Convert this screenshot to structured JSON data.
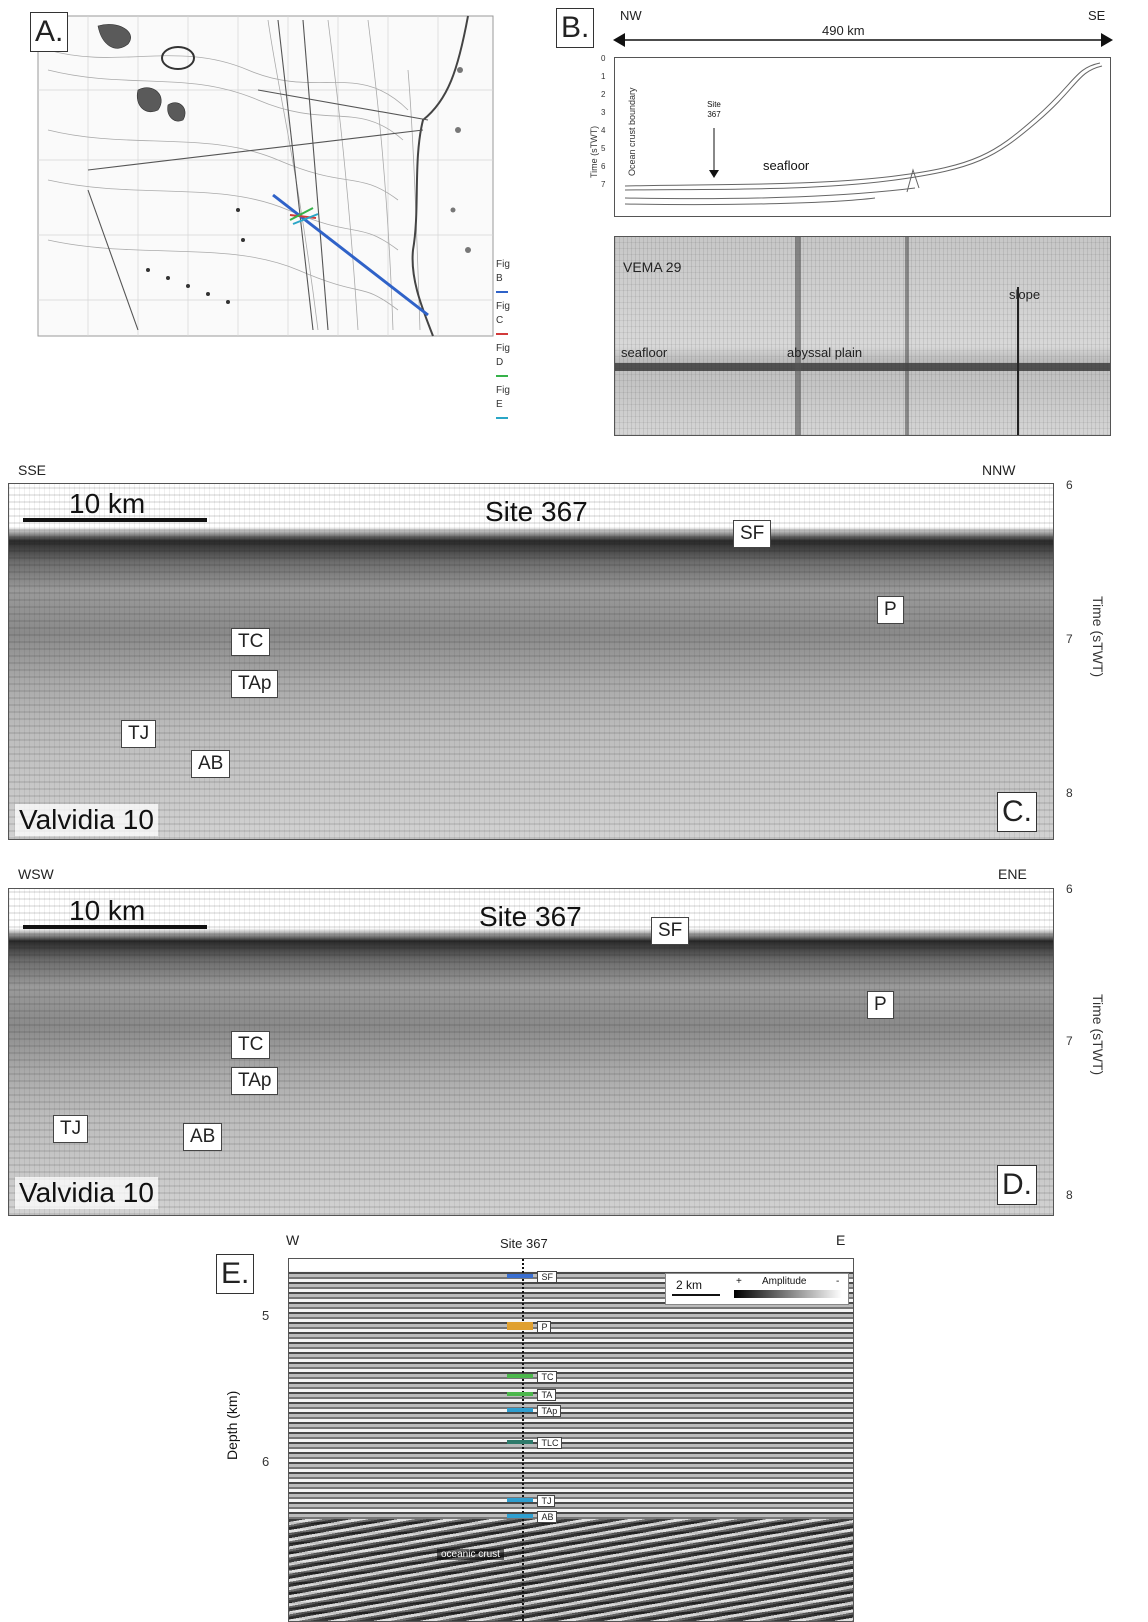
{
  "panel_a": {
    "letter": "A.",
    "legend": [
      "Fig B",
      "Fig C",
      "Fig D",
      "Fig E"
    ],
    "legend_colors": [
      "#2f62c8",
      "#d23a3a",
      "#36b24a",
      "#2aa6c6"
    ]
  },
  "panel_b": {
    "letter": "B.",
    "dir_left": "NW",
    "dir_right": "SE",
    "distance": "490 km",
    "ylabel": "Time (sTWT)",
    "y_ticks": [
      "0",
      "1",
      "2",
      "3",
      "4",
      "5",
      "6",
      "7"
    ],
    "boundary_label": "Ocean crust boundary",
    "site_label": "Site 367",
    "seafloor_label": "seafloor",
    "photo_title": "VEMA 29",
    "photo_labels": {
      "seafloor": "seafloor",
      "plain": "abyssal plain",
      "slope": "slope"
    }
  },
  "panel_c": {
    "letter": "C.",
    "dir_left": "SSE",
    "dir_right": "NNW",
    "scale": "10 km",
    "site": "Site 367",
    "line_name": "Valvidia 10",
    "ylabel": "Time (sTWT)",
    "y_ticks": [
      "6",
      "7",
      "8"
    ],
    "horizons": [
      "SF",
      "P",
      "TC",
      "TAp",
      "TJ",
      "AB"
    ]
  },
  "panel_d": {
    "letter": "D.",
    "dir_left": "WSW",
    "dir_right": "ENE",
    "scale": "10 km",
    "site": "Site 367",
    "line_name": "Valvidia 10",
    "ylabel": "Time (sTWT)",
    "y_ticks": [
      "6",
      "7",
      "8"
    ],
    "horizons": [
      "SF",
      "P",
      "TC",
      "TAp",
      "TJ",
      "AB"
    ]
  },
  "panel_e": {
    "letter": "E.",
    "dir_left": "W",
    "dir_right": "E",
    "site": "Site 367",
    "scale": "2 km",
    "amplitude": "Amplitude",
    "amp_plus": "+",
    "amp_minus": "-",
    "ylabel": "Depth (km)",
    "y_ticks": [
      "5",
      "6"
    ],
    "horizons": [
      "SF",
      "P",
      "TC",
      "TA",
      "TAp",
      "TLC",
      "TJ",
      "AB"
    ],
    "horizon_colors": [
      "#3a6fd1",
      "#e0a030",
      "#4cb84c",
      "#4cb84c",
      "#2f9fd0",
      "#2e7a6a",
      "#2f9fd0",
      "#2f9fd0"
    ],
    "crust_label": "oceanic crust"
  }
}
